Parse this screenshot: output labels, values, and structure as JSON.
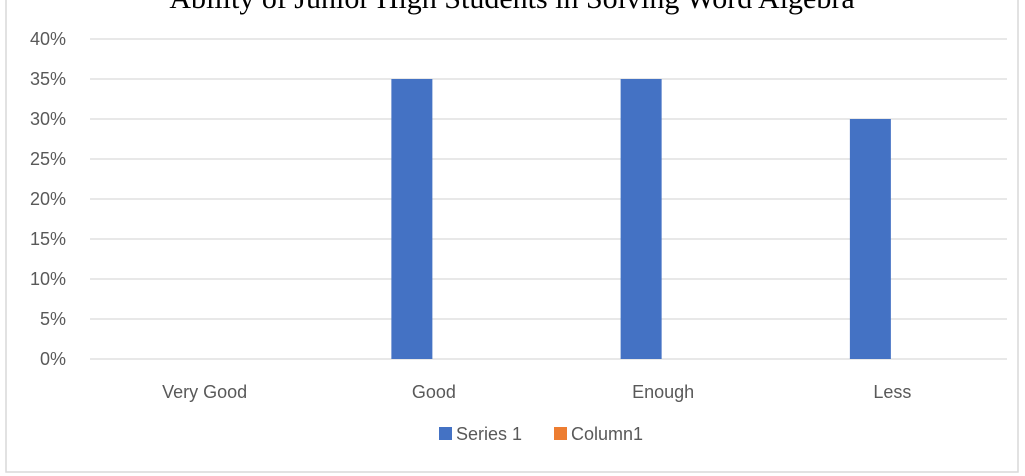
{
  "chart_data": {
    "type": "bar",
    "title": "Ability of Junior High Students in Solving Word Algebra",
    "categories": [
      "Very Good",
      "Good",
      "Enough",
      "Less"
    ],
    "series": [
      {
        "name": "Series 1",
        "color": "#4472C4",
        "values": [
          0,
          0.35,
          0.35,
          0.3
        ]
      },
      {
        "name": "Column1",
        "color": "#ED7D31",
        "values": [
          0,
          0,
          0,
          0
        ]
      }
    ],
    "ylim": [
      0,
      0.4
    ],
    "ytick_step": 0.05,
    "ytick_labels": [
      "0%",
      "5%",
      "10%",
      "15%",
      "20%",
      "25%",
      "30%",
      "35%",
      "40%"
    ],
    "xlabel": "",
    "ylabel": "",
    "grid": true,
    "legend_position": "bottom"
  }
}
